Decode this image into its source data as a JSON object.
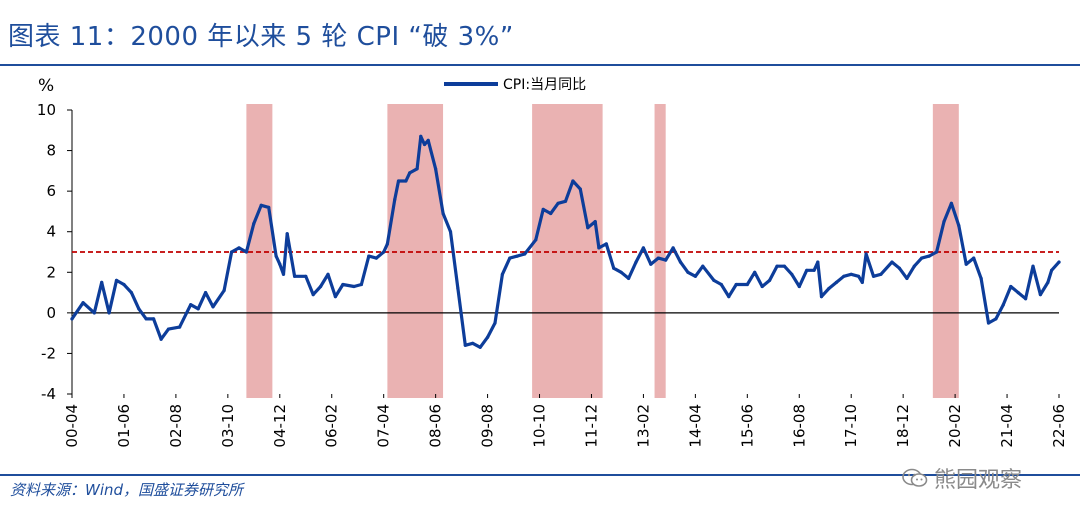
{
  "header": {
    "title": "图表 11：2000 年以来 5 轮 CPI “破 3%”"
  },
  "footer": {
    "source": "资料来源：Wind，国盛证券研究所",
    "watermark": "熊园观察",
    "watermark_icon": "wechat-icon"
  },
  "colors": {
    "accent": "#1f4e9c",
    "series": "#0d3d9a",
    "shade": "#eab2b2",
    "threshold": "#c00000"
  },
  "chart_data": {
    "type": "line",
    "title": "",
    "unit_label": "%",
    "xlabel": "",
    "ylabel": "%",
    "ylim": [
      -4,
      10
    ],
    "yticks": [
      -4,
      -2,
      0,
      2,
      4,
      6,
      8,
      10
    ],
    "xlim": [
      "2000-04",
      "2022-06"
    ],
    "xtick_labels": [
      "00-04",
      "01-06",
      "02-08",
      "03-10",
      "04-12",
      "06-02",
      "07-04",
      "08-06",
      "09-08",
      "10-10",
      "11-12",
      "13-02",
      "14-04",
      "15-06",
      "16-08",
      "17-10",
      "18-12",
      "20-02",
      "21-04",
      "22-06"
    ],
    "threshold": {
      "value": 3,
      "style": "dashed"
    },
    "zero_line": 0,
    "legend": {
      "position": "top-center",
      "entries": [
        "CPI:当月同比"
      ]
    },
    "shaded_periods": [
      {
        "start": "2004-03",
        "end": "2004-10"
      },
      {
        "start": "2007-05",
        "end": "2008-08"
      },
      {
        "start": "2010-08",
        "end": "2012-03"
      },
      {
        "start": "2013-05",
        "end": "2013-08"
      },
      {
        "start": "2019-08",
        "end": "2020-03"
      }
    ],
    "series": [
      {
        "name": "CPI:当月同比",
        "points": [
          [
            "2000-04",
            -0.3
          ],
          [
            "2000-07",
            0.5
          ],
          [
            "2000-10",
            0.0
          ],
          [
            "2000-12",
            1.5
          ],
          [
            "2001-02",
            0.0
          ],
          [
            "2001-04",
            1.6
          ],
          [
            "2001-06",
            1.4
          ],
          [
            "2001-08",
            1.0
          ],
          [
            "2001-10",
            0.2
          ],
          [
            "2001-12",
            -0.3
          ],
          [
            "2002-02",
            -0.3
          ],
          [
            "2002-04",
            -1.3
          ],
          [
            "2002-06",
            -0.8
          ],
          [
            "2002-09",
            -0.7
          ],
          [
            "2002-12",
            0.4
          ],
          [
            "2003-02",
            0.2
          ],
          [
            "2003-04",
            1.0
          ],
          [
            "2003-06",
            0.3
          ],
          [
            "2003-09",
            1.1
          ],
          [
            "2003-11",
            3.0
          ],
          [
            "2004-01",
            3.2
          ],
          [
            "2004-03",
            3.0
          ],
          [
            "2004-05",
            4.4
          ],
          [
            "2004-07",
            5.3
          ],
          [
            "2004-09",
            5.2
          ],
          [
            "2004-11",
            2.8
          ],
          [
            "2004-12",
            2.4
          ],
          [
            "2005-01",
            1.9
          ],
          [
            "2005-02",
            3.9
          ],
          [
            "2005-04",
            1.8
          ],
          [
            "2005-07",
            1.8
          ],
          [
            "2005-09",
            0.9
          ],
          [
            "2005-11",
            1.3
          ],
          [
            "2006-01",
            1.9
          ],
          [
            "2006-03",
            0.8
          ],
          [
            "2006-05",
            1.4
          ],
          [
            "2006-08",
            1.3
          ],
          [
            "2006-10",
            1.4
          ],
          [
            "2006-12",
            2.8
          ],
          [
            "2007-02",
            2.7
          ],
          [
            "2007-04",
            3.0
          ],
          [
            "2007-05",
            3.4
          ],
          [
            "2007-07",
            5.6
          ],
          [
            "2007-08",
            6.5
          ],
          [
            "2007-10",
            6.5
          ],
          [
            "2007-11",
            6.9
          ],
          [
            "2008-01",
            7.1
          ],
          [
            "2008-02",
            8.7
          ],
          [
            "2008-03",
            8.3
          ],
          [
            "2008-04",
            8.5
          ],
          [
            "2008-06",
            7.1
          ],
          [
            "2008-08",
            4.9
          ],
          [
            "2008-10",
            4.0
          ],
          [
            "2008-12",
            1.2
          ],
          [
            "2009-02",
            -1.6
          ],
          [
            "2009-04",
            -1.5
          ],
          [
            "2009-06",
            -1.7
          ],
          [
            "2009-08",
            -1.2
          ],
          [
            "2009-10",
            -0.5
          ],
          [
            "2009-12",
            1.9
          ],
          [
            "2010-02",
            2.7
          ],
          [
            "2010-04",
            2.8
          ],
          [
            "2010-06",
            2.9
          ],
          [
            "2010-09",
            3.6
          ],
          [
            "2010-11",
            5.1
          ],
          [
            "2011-01",
            4.9
          ],
          [
            "2011-03",
            5.4
          ],
          [
            "2011-05",
            5.5
          ],
          [
            "2011-07",
            6.5
          ],
          [
            "2011-09",
            6.1
          ],
          [
            "2011-11",
            4.2
          ],
          [
            "2012-01",
            4.5
          ],
          [
            "2012-02",
            3.2
          ],
          [
            "2012-04",
            3.4
          ],
          [
            "2012-06",
            2.2
          ],
          [
            "2012-08",
            2.0
          ],
          [
            "2012-10",
            1.7
          ],
          [
            "2012-12",
            2.5
          ],
          [
            "2013-02",
            3.2
          ],
          [
            "2013-04",
            2.4
          ],
          [
            "2013-06",
            2.7
          ],
          [
            "2013-08",
            2.6
          ],
          [
            "2013-10",
            3.2
          ],
          [
            "2013-12",
            2.5
          ],
          [
            "2014-02",
            2.0
          ],
          [
            "2014-04",
            1.8
          ],
          [
            "2014-06",
            2.3
          ],
          [
            "2014-09",
            1.6
          ],
          [
            "2014-11",
            1.4
          ],
          [
            "2015-01",
            0.8
          ],
          [
            "2015-03",
            1.4
          ],
          [
            "2015-06",
            1.4
          ],
          [
            "2015-08",
            2.0
          ],
          [
            "2015-10",
            1.3
          ],
          [
            "2015-12",
            1.6
          ],
          [
            "2016-02",
            2.3
          ],
          [
            "2016-04",
            2.3
          ],
          [
            "2016-06",
            1.9
          ],
          [
            "2016-08",
            1.3
          ],
          [
            "2016-10",
            2.1
          ],
          [
            "2016-12",
            2.1
          ],
          [
            "2017-01",
            2.5
          ],
          [
            "2017-02",
            0.8
          ],
          [
            "2017-04",
            1.2
          ],
          [
            "2017-06",
            1.5
          ],
          [
            "2017-08",
            1.8
          ],
          [
            "2017-10",
            1.9
          ],
          [
            "2017-12",
            1.8
          ],
          [
            "2018-01",
            1.5
          ],
          [
            "2018-02",
            2.9
          ],
          [
            "2018-04",
            1.8
          ],
          [
            "2018-06",
            1.9
          ],
          [
            "2018-09",
            2.5
          ],
          [
            "2018-11",
            2.2
          ],
          [
            "2019-01",
            1.7
          ],
          [
            "2019-03",
            2.3
          ],
          [
            "2019-05",
            2.7
          ],
          [
            "2019-07",
            2.8
          ],
          [
            "2019-09",
            3.0
          ],
          [
            "2019-11",
            4.5
          ],
          [
            "2020-01",
            5.4
          ],
          [
            "2020-03",
            4.3
          ],
          [
            "2020-05",
            2.4
          ],
          [
            "2020-07",
            2.7
          ],
          [
            "2020-09",
            1.7
          ],
          [
            "2020-11",
            -0.5
          ],
          [
            "2021-01",
            -0.3
          ],
          [
            "2021-03",
            0.4
          ],
          [
            "2021-05",
            1.3
          ],
          [
            "2021-07",
            1.0
          ],
          [
            "2021-09",
            0.7
          ],
          [
            "2021-11",
            2.3
          ],
          [
            "2022-01",
            0.9
          ],
          [
            "2022-03",
            1.5
          ],
          [
            "2022-04",
            2.1
          ],
          [
            "2022-06",
            2.5
          ]
        ]
      }
    ]
  }
}
